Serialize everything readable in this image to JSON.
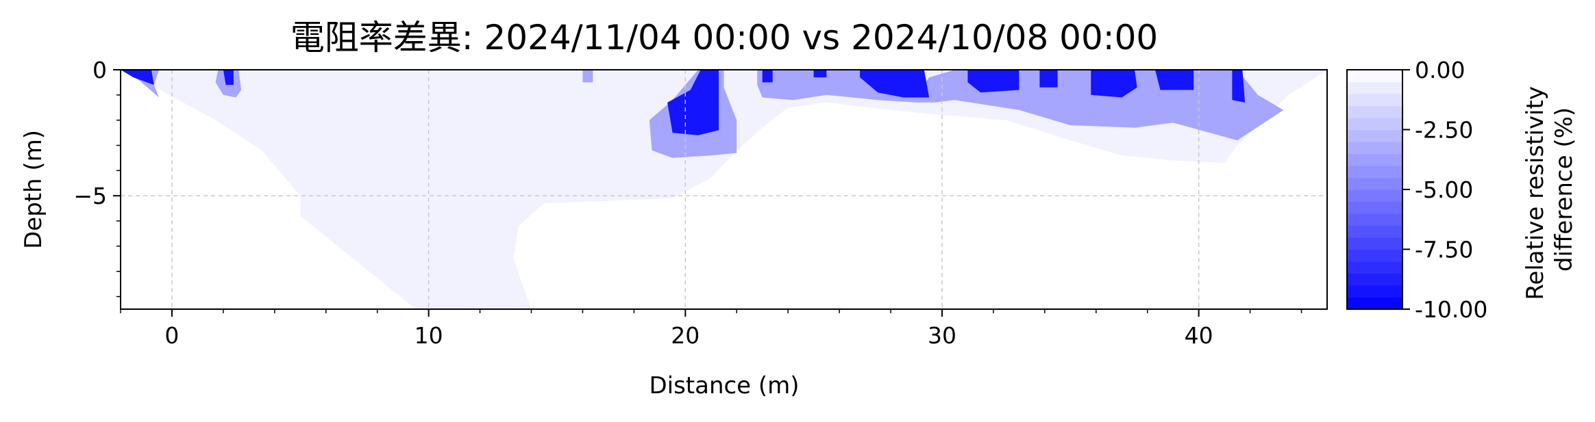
{
  "chart_data": {
    "type": "heatmap",
    "subtype": "filled-contour",
    "title": "電阻率差異: 2024/11/04 00:00 vs 2024/10/08 00:00",
    "xlabel": "Distance (m)",
    "ylabel": "Depth (m)",
    "xlim": [
      -2,
      45
    ],
    "ylim": [
      -9.5,
      0
    ],
    "x_ticks": [
      0,
      10,
      20,
      30,
      40
    ],
    "x_tick_labels": [
      "0",
      "10",
      "20",
      "30",
      "40"
    ],
    "y_ticks": [
      0,
      -5
    ],
    "y_tick_labels": [
      "0",
      "−5"
    ],
    "grid": true,
    "colorbar": {
      "label": "Relative resistivity difference (%)",
      "label_lines": [
        "Relative resistivity",
        "difference (%)"
      ],
      "range": [
        -10,
        0
      ],
      "ticks": [
        0,
        -2.5,
        -5,
        -7.5,
        -10
      ],
      "tick_labels": [
        "0.00",
        "-2.50",
        "-5.00",
        "-7.50",
        "-10.00"
      ],
      "levels": 20,
      "color_low": "#0000ff",
      "color_high": "#ffffff"
    },
    "regions": [
      {
        "level": -0.5,
        "points": [
          [
            -2,
            0
          ],
          [
            45,
            0
          ],
          [
            43.5,
            -1
          ],
          [
            41.5,
            -3
          ],
          [
            41,
            -3.7
          ],
          [
            39,
            -3.6
          ],
          [
            37,
            -3.4
          ],
          [
            35,
            -2.8
          ],
          [
            32.5,
            -2
          ],
          [
            30,
            -1.8
          ],
          [
            28,
            -1.6
          ],
          [
            25.5,
            -1.3
          ],
          [
            24,
            -1.5
          ],
          [
            23,
            -2.3
          ],
          [
            22,
            -3.2
          ],
          [
            21,
            -4.3
          ],
          [
            19.5,
            -5.1
          ],
          [
            17,
            -5.2
          ],
          [
            14.5,
            -5.3
          ],
          [
            13.5,
            -6.2
          ],
          [
            13.3,
            -7.5
          ],
          [
            14,
            -9.5
          ],
          [
            9.5,
            -9.5
          ],
          [
            5,
            -5.8
          ],
          [
            5,
            -5
          ],
          [
            3.5,
            -3.2
          ],
          [
            1.7,
            -2
          ],
          [
            -1,
            -0.5
          ],
          [
            -2,
            0
          ]
        ]
      },
      {
        "level": -3.5,
        "points": [
          [
            -2,
            0
          ],
          [
            -0.5,
            0
          ],
          [
            -0.7,
            -0.6
          ],
          [
            -0.5,
            -1.1
          ],
          [
            -1.3,
            -0.4
          ],
          [
            -2,
            0
          ]
        ]
      },
      {
        "level": -3.5,
        "points": [
          [
            1.8,
            0
          ],
          [
            2.6,
            0
          ],
          [
            2.7,
            -0.8
          ],
          [
            2.5,
            -1.1
          ],
          [
            2,
            -1
          ],
          [
            1.7,
            -0.5
          ]
        ]
      },
      {
        "level": -3.5,
        "points": [
          [
            16,
            0
          ],
          [
            16.4,
            0
          ],
          [
            16.4,
            -0.5
          ],
          [
            16,
            -0.5
          ]
        ]
      },
      {
        "level": -3.5,
        "points": [
          [
            20.5,
            0
          ],
          [
            21.5,
            0
          ],
          [
            21.5,
            -0.7
          ],
          [
            22,
            -2
          ],
          [
            22,
            -3.3
          ],
          [
            21,
            -3.4
          ],
          [
            19.5,
            -3.5
          ],
          [
            18.7,
            -3.2
          ],
          [
            18.6,
            -2
          ],
          [
            19.5,
            -1.2
          ],
          [
            20,
            -0.6
          ]
        ]
      },
      {
        "level": -3.5,
        "points": [
          [
            22.8,
            0
          ],
          [
            26.8,
            0
          ],
          [
            27.5,
            -0.7
          ],
          [
            29,
            -1
          ],
          [
            29.5,
            -0.3
          ],
          [
            30.5,
            0
          ],
          [
            41.5,
            0
          ],
          [
            42.3,
            -1
          ],
          [
            43.3,
            -1.6
          ],
          [
            41.5,
            -2.8
          ],
          [
            39,
            -2.1
          ],
          [
            37.5,
            -2.3
          ],
          [
            35,
            -2.2
          ],
          [
            33,
            -1.6
          ],
          [
            30.5,
            -1.2
          ],
          [
            29.7,
            -1.3
          ],
          [
            29,
            -1.3
          ],
          [
            27.5,
            -1.2
          ],
          [
            25.5,
            -1
          ],
          [
            24.2,
            -1.2
          ],
          [
            23,
            -1.1
          ],
          [
            22.8,
            -0.6
          ]
        ]
      },
      {
        "level": -9.2,
        "points": [
          [
            -2,
            0
          ],
          [
            -0.8,
            0
          ],
          [
            -0.7,
            -0.6
          ],
          [
            -1.5,
            -0.3
          ]
        ]
      },
      {
        "level": -9.2,
        "points": [
          [
            2,
            0
          ],
          [
            2.4,
            0
          ],
          [
            2.4,
            -0.6
          ],
          [
            2.1,
            -0.6
          ]
        ]
      },
      {
        "level": -9.2,
        "points": [
          [
            20.6,
            0
          ],
          [
            21.3,
            0
          ],
          [
            21.3,
            -2.4
          ],
          [
            20.5,
            -2.6
          ],
          [
            19.5,
            -2.5
          ],
          [
            19.3,
            -1.3
          ],
          [
            20.2,
            -0.8
          ]
        ]
      },
      {
        "level": -9.2,
        "points": [
          [
            23,
            0
          ],
          [
            23.4,
            0
          ],
          [
            23.4,
            -0.5
          ],
          [
            23,
            -0.5
          ]
        ]
      },
      {
        "level": -9.2,
        "points": [
          [
            25,
            0
          ],
          [
            25.5,
            0
          ],
          [
            25.5,
            -0.3
          ],
          [
            25,
            -0.3
          ]
        ]
      },
      {
        "level": -9.2,
        "points": [
          [
            26.8,
            0
          ],
          [
            29.3,
            0
          ],
          [
            29.5,
            -1.1
          ],
          [
            28.5,
            -1.1
          ],
          [
            27.5,
            -0.9
          ],
          [
            26.8,
            -0.3
          ]
        ]
      },
      {
        "level": -9.2,
        "points": [
          [
            31,
            0
          ],
          [
            33,
            0
          ],
          [
            33,
            -0.8
          ],
          [
            31.5,
            -0.9
          ],
          [
            31,
            -0.5
          ]
        ]
      },
      {
        "level": -9.2,
        "points": [
          [
            33.8,
            0
          ],
          [
            34.5,
            0
          ],
          [
            34.5,
            -0.7
          ],
          [
            33.8,
            -0.7
          ]
        ]
      },
      {
        "level": -9.2,
        "points": [
          [
            35.8,
            0
          ],
          [
            37.5,
            0
          ],
          [
            37.6,
            -0.7
          ],
          [
            37,
            -1.1
          ],
          [
            35.8,
            -1
          ]
        ]
      },
      {
        "level": -9.2,
        "points": [
          [
            38.3,
            0
          ],
          [
            39.8,
            0
          ],
          [
            39.8,
            -0.8
          ],
          [
            38.5,
            -0.8
          ]
        ]
      },
      {
        "level": -9.2,
        "points": [
          [
            41.3,
            0
          ],
          [
            41.7,
            0
          ],
          [
            41.8,
            -1.3
          ],
          [
            41.3,
            -1.2
          ]
        ]
      }
    ]
  }
}
